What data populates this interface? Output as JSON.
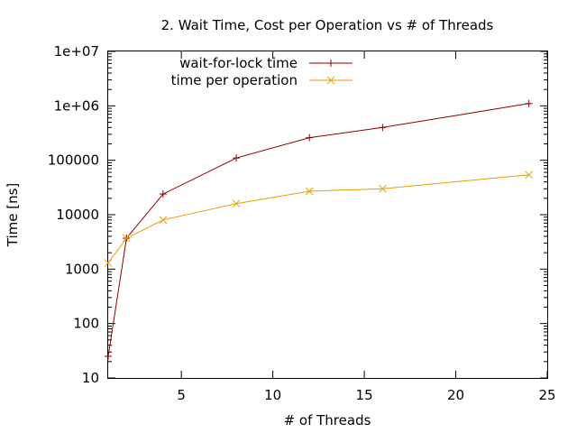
{
  "chart_data": {
    "type": "line",
    "title": "2. Wait Time, Cost per Operation vs # of Threads",
    "xlabel": "# of Threads",
    "ylabel": "Time [ns]",
    "xlim": [
      1,
      25
    ],
    "ylim": [
      10,
      10000000
    ],
    "yscale": "log",
    "grid": false,
    "legend": "top-left",
    "x_ticks": [
      5,
      10,
      15,
      20,
      25
    ],
    "x_tick_labels": [
      "5",
      "10",
      "15",
      "20",
      "25"
    ],
    "y_ticks": [
      10,
      100,
      1000,
      10000,
      100000,
      1000000,
      10000000
    ],
    "y_tick_labels": [
      "10",
      "100",
      "1000",
      "10000",
      "100000",
      "1e+06",
      "1e+07"
    ],
    "series": [
      {
        "name": "wait-for-lock time",
        "color": "#8b0000",
        "marker": "plus",
        "x": [
          1,
          2,
          4,
          8,
          12,
          16,
          24
        ],
        "y": [
          25,
          3700,
          24000,
          110000,
          260000,
          400000,
          1100000
        ]
      },
      {
        "name": "time per operation",
        "color": "#e8a000",
        "marker": "cross",
        "x": [
          1,
          2,
          4,
          8,
          12,
          16,
          24
        ],
        "y": [
          1300,
          3700,
          8000,
          16000,
          27000,
          30000,
          54000
        ]
      }
    ]
  }
}
